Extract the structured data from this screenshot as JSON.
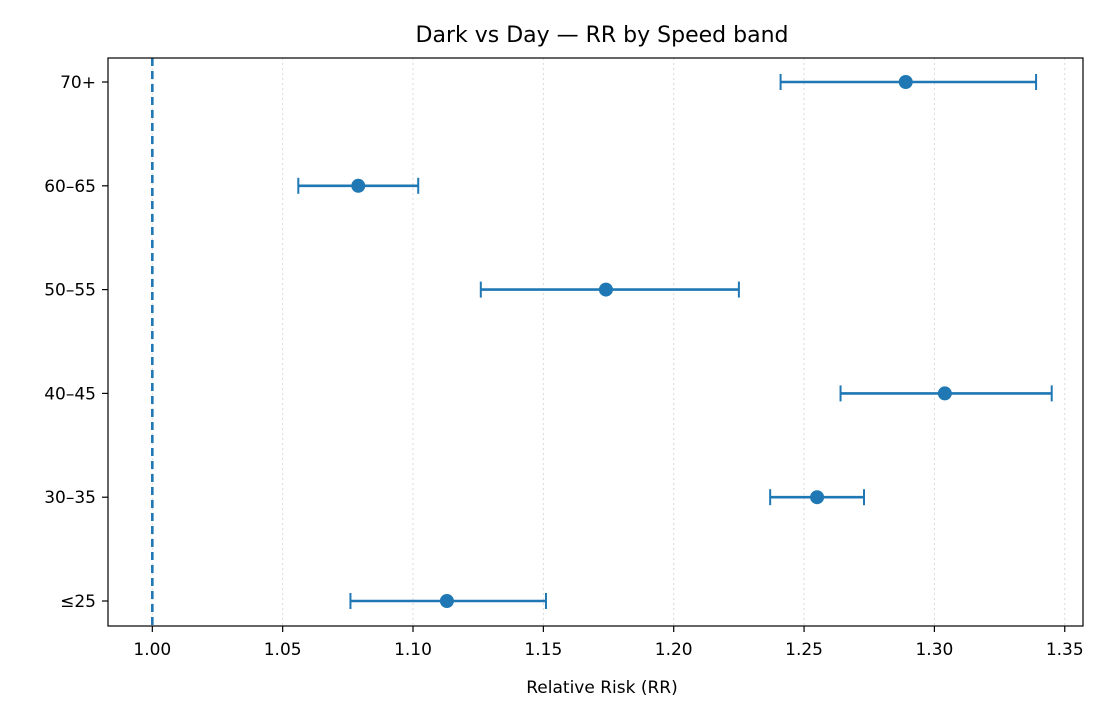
{
  "chart_data": {
    "type": "scatter",
    "subtype": "forest-plot",
    "title": "Dark vs Day — RR by Speed band",
    "xlabel": "Relative Risk (RR)",
    "ylabel": "",
    "xlim": [
      0.983,
      1.357
    ],
    "xticks": [
      1.0,
      1.05,
      1.1,
      1.15,
      1.2,
      1.25,
      1.3,
      1.35
    ],
    "xtick_labels": [
      "1.00",
      "1.05",
      "1.10",
      "1.15",
      "1.20",
      "1.25",
      "1.30",
      "1.35"
    ],
    "categories": [
      "≤25",
      "30–35",
      "40–45",
      "50–55",
      "60–65",
      "70+"
    ],
    "values": [
      1.113,
      1.255,
      1.304,
      1.174,
      1.079,
      1.289
    ],
    "ci_low": [
      1.076,
      1.237,
      1.264,
      1.126,
      1.056,
      1.241
    ],
    "ci_high": [
      1.151,
      1.273,
      1.345,
      1.225,
      1.102,
      1.339
    ],
    "reference_line": 1.0,
    "grid": "x-dotted",
    "colors": {
      "series": "#1f77b4",
      "grid": "#d9d9d9",
      "axis": "#000000"
    }
  }
}
